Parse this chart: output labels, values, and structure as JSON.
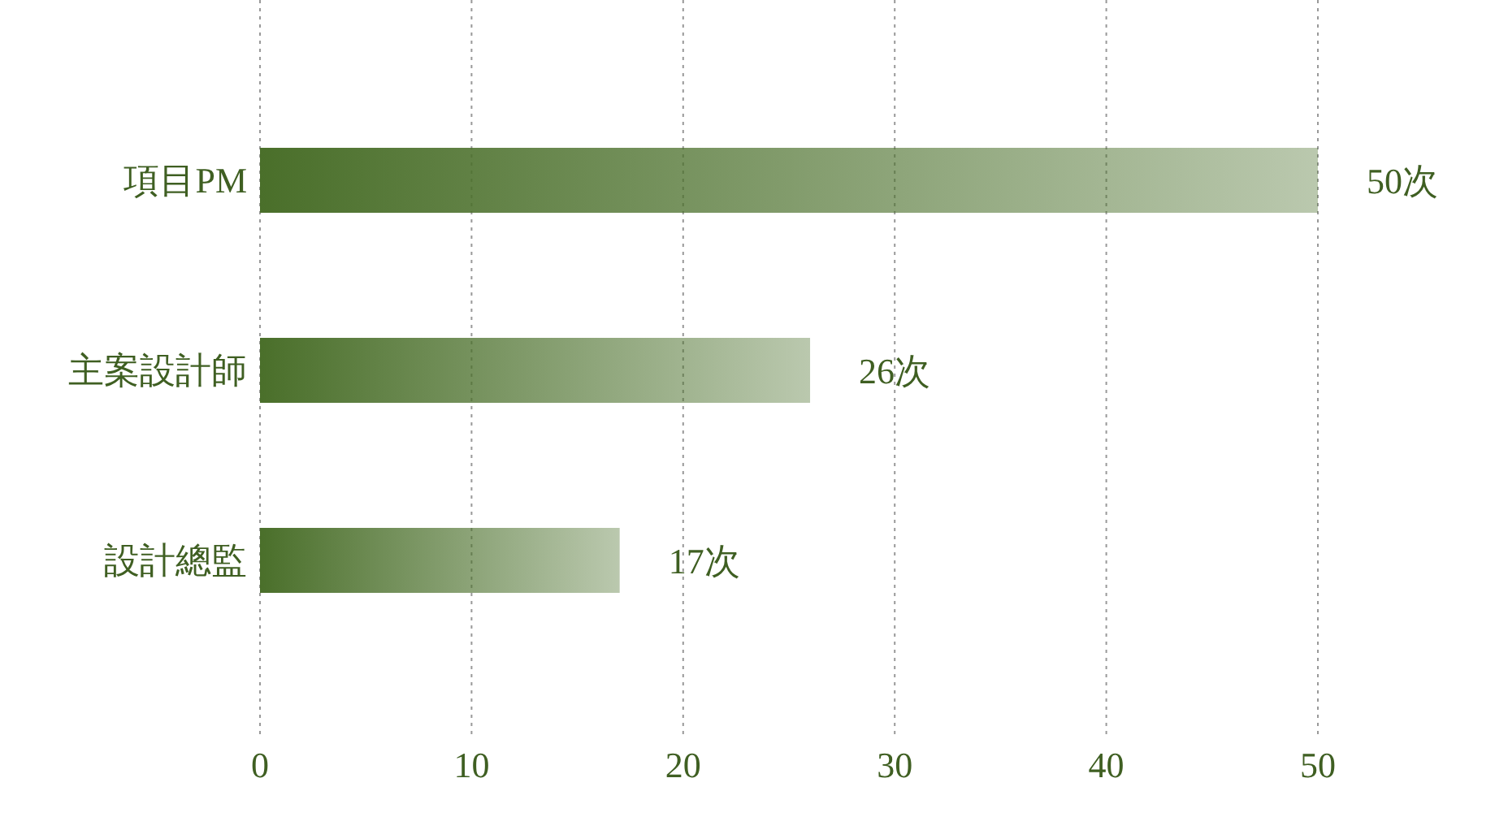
{
  "chart_data": {
    "type": "bar",
    "orientation": "horizontal",
    "categories": [
      "項目PM",
      "主案設計師",
      "設計總監"
    ],
    "values": [
      50,
      26,
      17
    ],
    "value_labels": [
      "50次",
      "26次",
      "17次"
    ],
    "color": "#4a6f2a",
    "xlim": [
      0,
      50
    ],
    "xticks": [
      0,
      10,
      20,
      30,
      40,
      50
    ],
    "grid": "x"
  }
}
